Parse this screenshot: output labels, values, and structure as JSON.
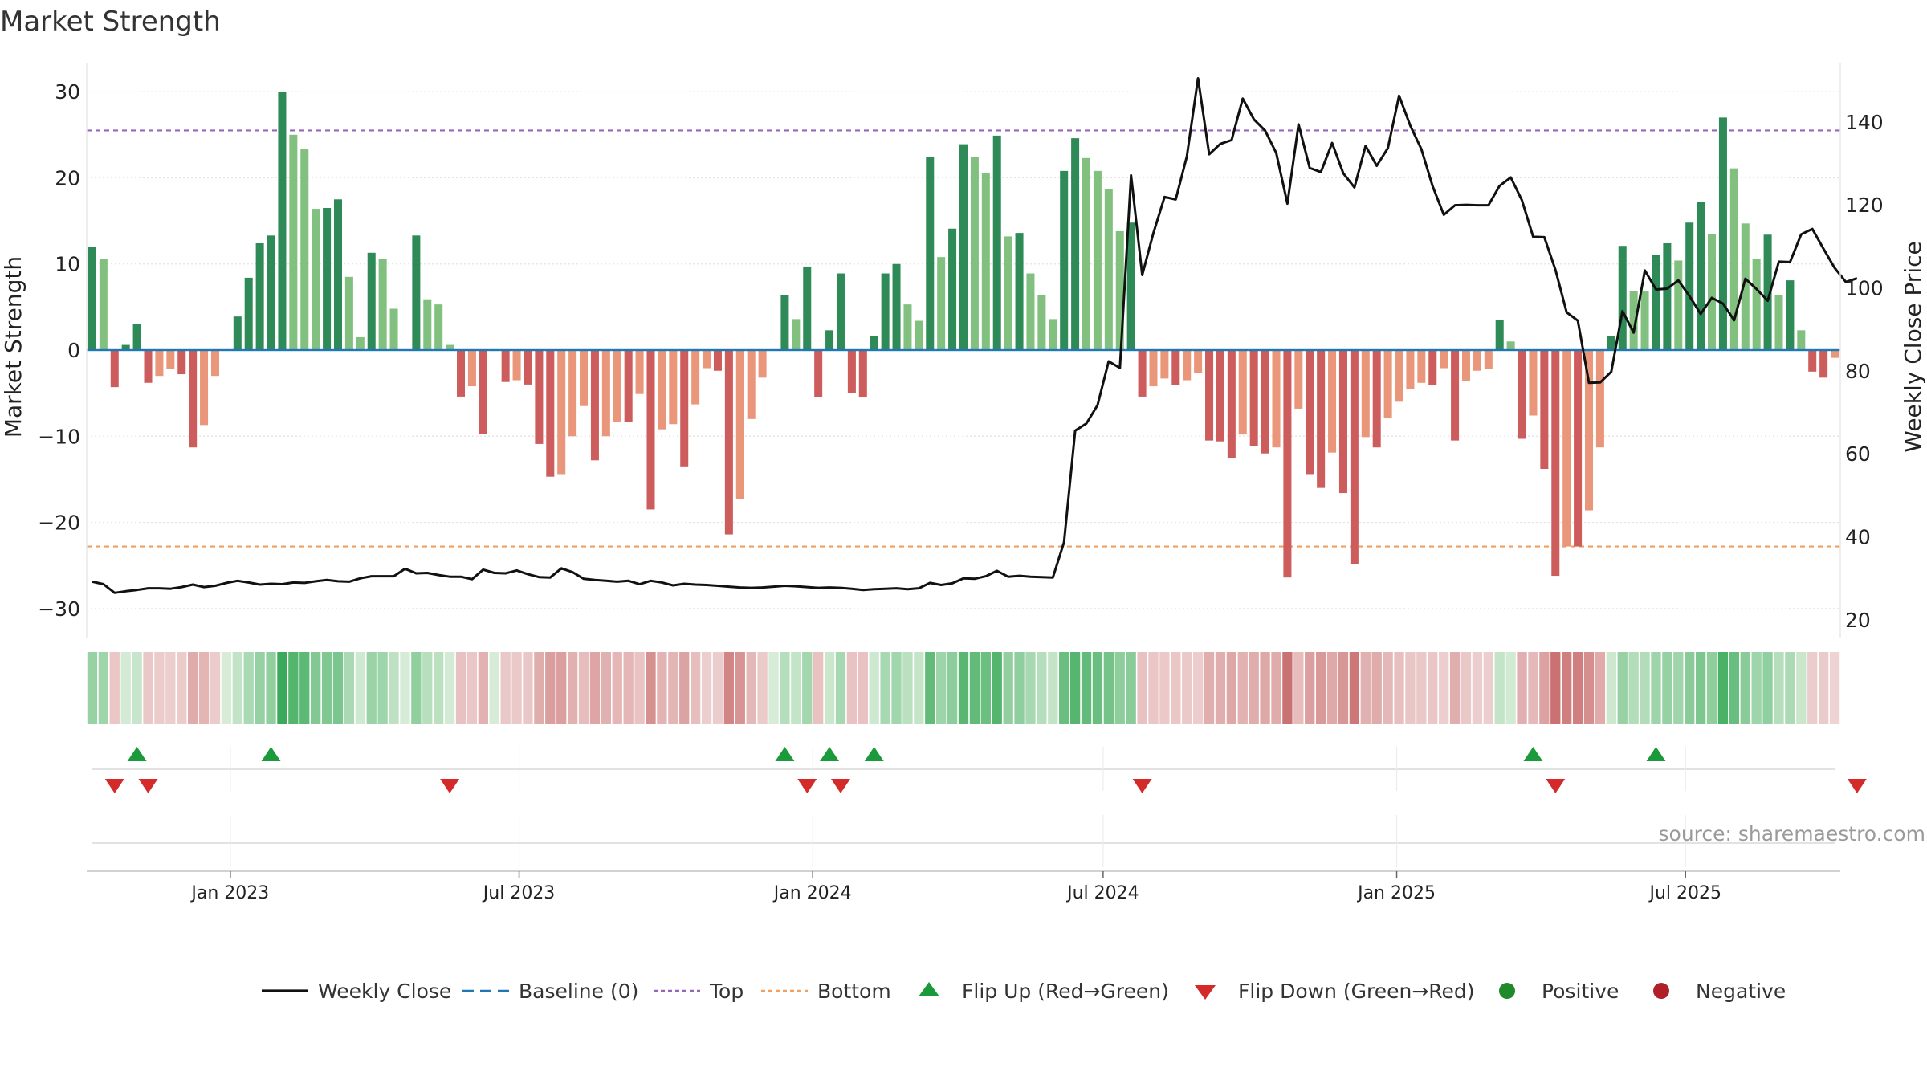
{
  "chart_data": {
    "type": "bar",
    "title": "Market Strength",
    "ylabel_left": "Market Strength",
    "ylabel_right": "Weekly Close Price",
    "source": "source: sharemaestro.com",
    "left_axis": {
      "range": [
        -33,
        33
      ],
      "ticks": [
        30,
        20,
        10,
        0,
        -10,
        -20,
        -30
      ],
      "tick_labels": [
        "30",
        "20",
        "10",
        "0",
        "−10",
        "−20",
        "−30"
      ]
    },
    "right_axis": {
      "range": [
        16.5,
        153.5
      ],
      "ticks": [
        140,
        120,
        100,
        80,
        60,
        40,
        20
      ],
      "tick_labels": [
        "140",
        "120",
        "100",
        "80",
        "60",
        "40",
        "20"
      ]
    },
    "x_axis": {
      "start": "2022-10-03",
      "end": "2025-10-06",
      "ticks": [
        {
          "date": "2023-01-01",
          "label": "Jan 2023"
        },
        {
          "date": "2023-07-01",
          "label": "Jul 2023"
        },
        {
          "date": "2024-01-01",
          "label": "Jan 2024"
        },
        {
          "date": "2024-07-01",
          "label": "Jul 2024"
        },
        {
          "date": "2025-01-01",
          "label": "Jan 2025"
        },
        {
          "date": "2025-07-01",
          "label": "Jul 2025"
        }
      ]
    },
    "top_threshold": 25.5,
    "bottom_threshold": -22.8,
    "week_start": "2022-10-03",
    "strength": [
      12,
      10.6,
      -4.3,
      0.6,
      3,
      -3.8,
      -3,
      -2.2,
      -2.8,
      -11.3,
      -8.7,
      -3,
      0,
      3.9,
      8.4,
      12.4,
      13.3,
      30,
      25,
      23.3,
      16.4,
      16.5,
      17.5,
      8.5,
      1.5,
      11.3,
      10.6,
      4.8,
      0,
      13.3,
      5.9,
      5.3,
      0.6,
      -5.4,
      -4.2,
      -9.7,
      0,
      -3.7,
      -3.5,
      -4,
      -10.9,
      -14.7,
      -14.4,
      -10,
      -6.5,
      -12.8,
      -10,
      -8.3,
      -8.3,
      -5.1,
      -18.5,
      -9.2,
      -8.6,
      -13.5,
      -6.3,
      -2.1,
      -2.4,
      -21.4,
      -17.3,
      -8,
      -3.2,
      0,
      6.4,
      3.6,
      9.7,
      -5.5,
      2.3,
      8.9,
      -5,
      -5.5,
      1.6,
      8.9,
      10,
      5.3,
      3.4,
      22.4,
      10.8,
      14.1,
      23.9,
      22.4,
      20.6,
      24.9,
      13.2,
      13.6,
      8.9,
      6.4,
      3.6,
      20.8,
      24.6,
      22.3,
      20.8,
      18.7,
      13.8,
      14.8,
      -5.4,
      -4.2,
      -3.3,
      -4.1,
      -3.5,
      -2.7,
      -10.5,
      -10.6,
      -12.5,
      -9.8,
      -11.1,
      -12,
      -11.3,
      -26.4,
      -6.8,
      -14.4,
      -16,
      -11.9,
      -16.6,
      -24.8,
      -10.1,
      -11.3,
      -7.9,
      -6,
      -4.5,
      -3.8,
      -4.1,
      -2.1,
      -10.5,
      -3.6,
      -2.4,
      -2.2,
      3.5,
      1,
      -10.3,
      -7.6,
      -13.8,
      -26.2,
      -22.8,
      -22.8,
      -18.6,
      -11.3,
      1.6,
      12.1,
      6.9,
      6.8,
      11,
      12.4,
      10.4,
      14.8,
      17.2,
      13.5,
      27,
      21.1,
      14.7,
      10.6,
      13.4,
      6.4,
      8.1,
      2.3,
      -2.5,
      -3.2,
      -0.9
    ],
    "price": [
      29.2,
      28.6,
      26.5,
      26.9,
      27.2,
      27.6,
      27.6,
      27.5,
      27.9,
      28.5,
      27.9,
      28.2,
      28.9,
      29.4,
      29,
      28.5,
      28.7,
      28.6,
      29,
      28.9,
      29.3,
      29.6,
      29.3,
      29.2,
      30,
      30.5,
      30.5,
      30.5,
      32.3,
      31.2,
      31.3,
      30.8,
      30.4,
      30.4,
      29.8,
      32.1,
      31.3,
      31.2,
      31.9,
      31,
      30.3,
      30.2,
      32.4,
      31.5,
      29.9,
      29.6,
      29.4,
      29.2,
      29.4,
      28.6,
      29.4,
      29,
      28.3,
      28.7,
      28.5,
      28.4,
      28.2,
      28,
      27.8,
      27.7,
      27.8,
      28,
      28.2,
      28.1,
      27.9,
      27.7,
      27.8,
      27.7,
      27.5,
      27.2,
      27.4,
      27.5,
      27.6,
      27.4,
      27.6,
      28.9,
      28.4,
      28.8,
      30,
      29.9,
      30.5,
      31.8,
      30.4,
      30.6,
      30.4,
      30.3,
      30.2,
      38.7,
      65.6,
      67.3,
      71.7,
      82.3,
      80.7,
      127.1,
      103.1,
      113.2,
      121.9,
      121.3,
      131.7,
      150.5,
      132.2,
      134.7,
      135.6,
      145.6,
      140.6,
      137.9,
      132.5,
      120.3,
      139.4,
      128.9,
      127.9,
      134.9,
      127.6,
      124.2,
      134.2,
      129.4,
      133.7,
      146.3,
      139.1,
      133.4,
      124.5,
      117.6,
      119.9,
      120,
      119.9,
      119.9,
      124.6,
      126.6,
      121.1,
      112.3,
      112.2,
      104.3,
      94.1,
      92.1,
      77.1,
      77.2,
      79.8,
      94.4,
      89.2,
      104.2,
      99.6,
      99.8,
      101.8,
      98,
      93.7,
      97.6,
      96.2,
      92.2,
      102.2,
      99.7,
      96.9,
      106.3,
      106.2,
      112.9,
      114.2,
      109.4,
      104.8,
      101.4,
      102.3
    ],
    "flip_up_weeks": [
      4,
      16,
      62,
      66,
      70,
      129,
      140
    ],
    "flip_down_weeks": [
      2,
      5,
      32,
      64,
      67,
      94,
      131,
      158
    ],
    "legend": [
      {
        "key": "weekly_close",
        "label": "Weekly Close",
        "color": "#111111"
      },
      {
        "key": "baseline",
        "label": "Baseline (0)",
        "color": "#1f77b4"
      },
      {
        "key": "top",
        "label": "Top",
        "color": "#9467bd"
      },
      {
        "key": "bottom",
        "label": "Bottom",
        "color": "#f0a060"
      },
      {
        "key": "flip_up",
        "label": "Flip Up (Red→Green)",
        "color": "#1a9a3a"
      },
      {
        "key": "flip_down",
        "label": "Flip Down (Green→Red)",
        "color": "#d42a2a"
      },
      {
        "key": "positive",
        "label": "Positive",
        "color": "#1f8a2a"
      },
      {
        "key": "negative",
        "label": "Negative",
        "color": "#b02028"
      }
    ],
    "colors": {
      "bar_pos_dark": "#2e8b57",
      "bar_pos_light": "#82c07f",
      "bar_neg_dark": "#cd5c5c",
      "bar_neg_light": "#e9967a",
      "top_line": "#9467bd",
      "bottom_line": "#f0a060",
      "baseline": "#1f77b4",
      "price_line": "#111111",
      "grid": "#e4e4e4"
    }
  }
}
